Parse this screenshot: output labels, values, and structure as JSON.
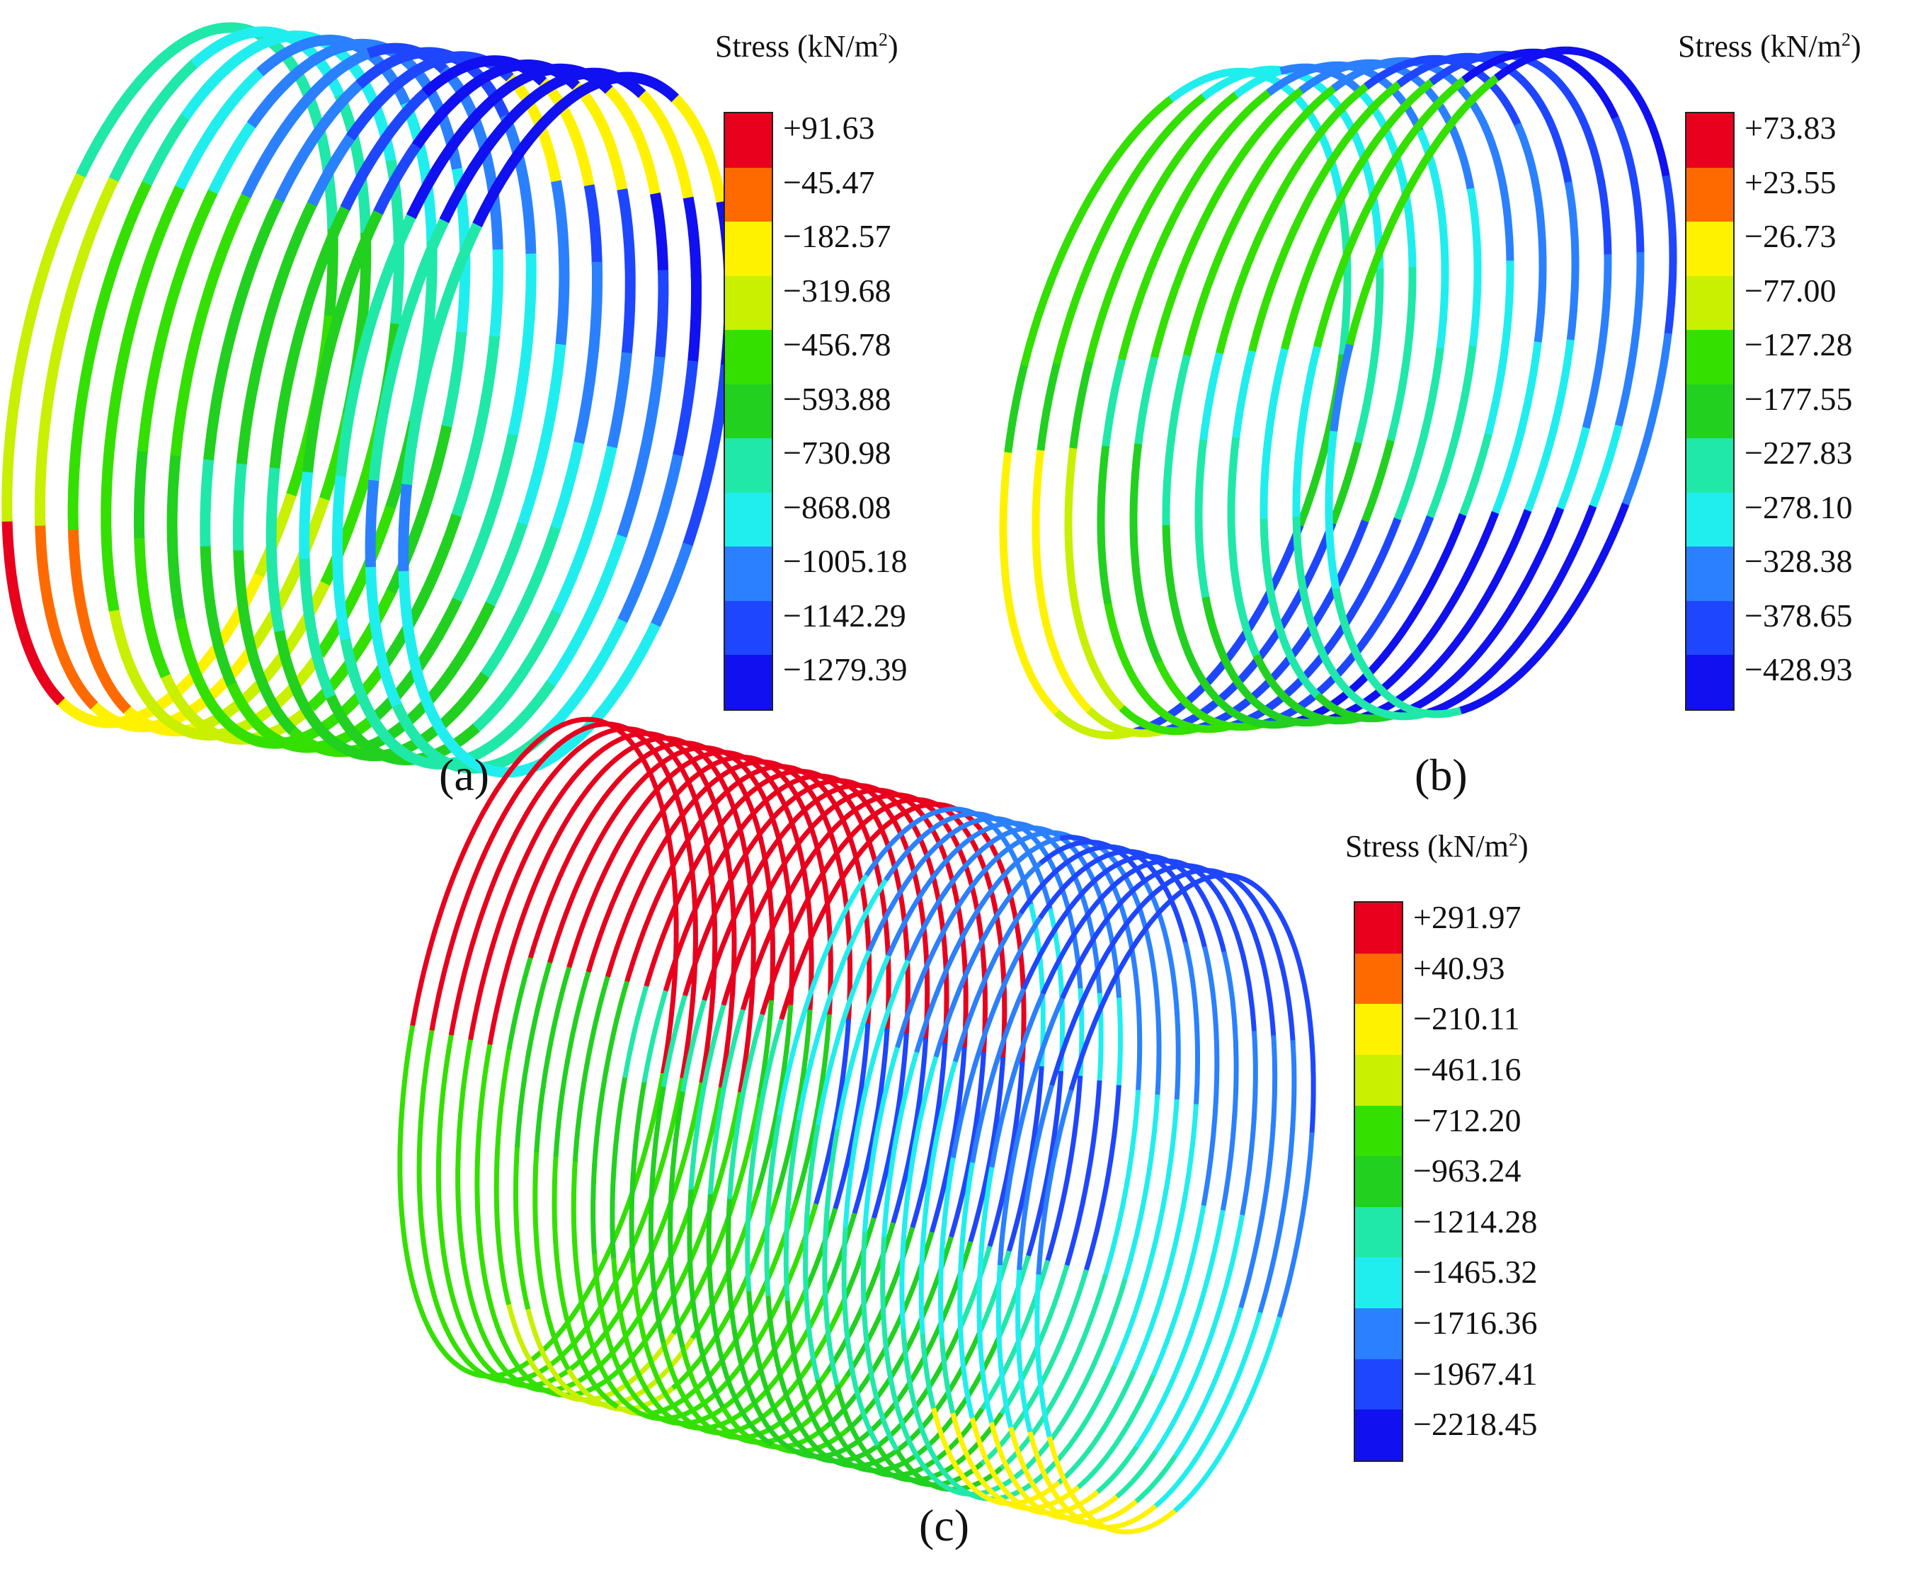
{
  "panels": [
    {
      "id": "a",
      "label": "(a)",
      "legend": {
        "title_main": "Stress (kN/m",
        "title_sup": "2",
        "title_end": ")",
        "ticks": [
          "+91.63",
          "−45.47",
          "−182.57",
          "−319.68",
          "−456.78",
          "−593.88",
          "−730.98",
          "−868.08",
          "−1005.18",
          "−1142.29",
          "−1279.39"
        ]
      }
    },
    {
      "id": "b",
      "label": "(b)",
      "legend": {
        "title_main": "Stress (kN/m",
        "title_sup": "2",
        "title_end": ")",
        "ticks": [
          "+73.83",
          "+23.55",
          "−26.73",
          "−77.00",
          "−127.28",
          "−177.55",
          "−227.83",
          "−278.10",
          "−328.38",
          "−378.65",
          "−428.93"
        ]
      }
    },
    {
      "id": "c",
      "label": "(c)",
      "legend": {
        "title_main": "Stress (kN/m",
        "title_sup": "2",
        "title_end": ")",
        "ticks": [
          "+291.97",
          "+40.93",
          "−210.11",
          "−461.16",
          "−712.20",
          "−963.24",
          "−1214.28",
          "−1465.32",
          "−1716.36",
          "−1967.41",
          "−2218.45"
        ]
      }
    }
  ],
  "colormap": [
    "#e8001c",
    "#ff6a00",
    "#fff200",
    "#c8f000",
    "#33e000",
    "#22d020",
    "#20e8a8",
    "#20eeee",
    "#2a80ff",
    "#1e46ff",
    "#1010f0"
  ]
}
